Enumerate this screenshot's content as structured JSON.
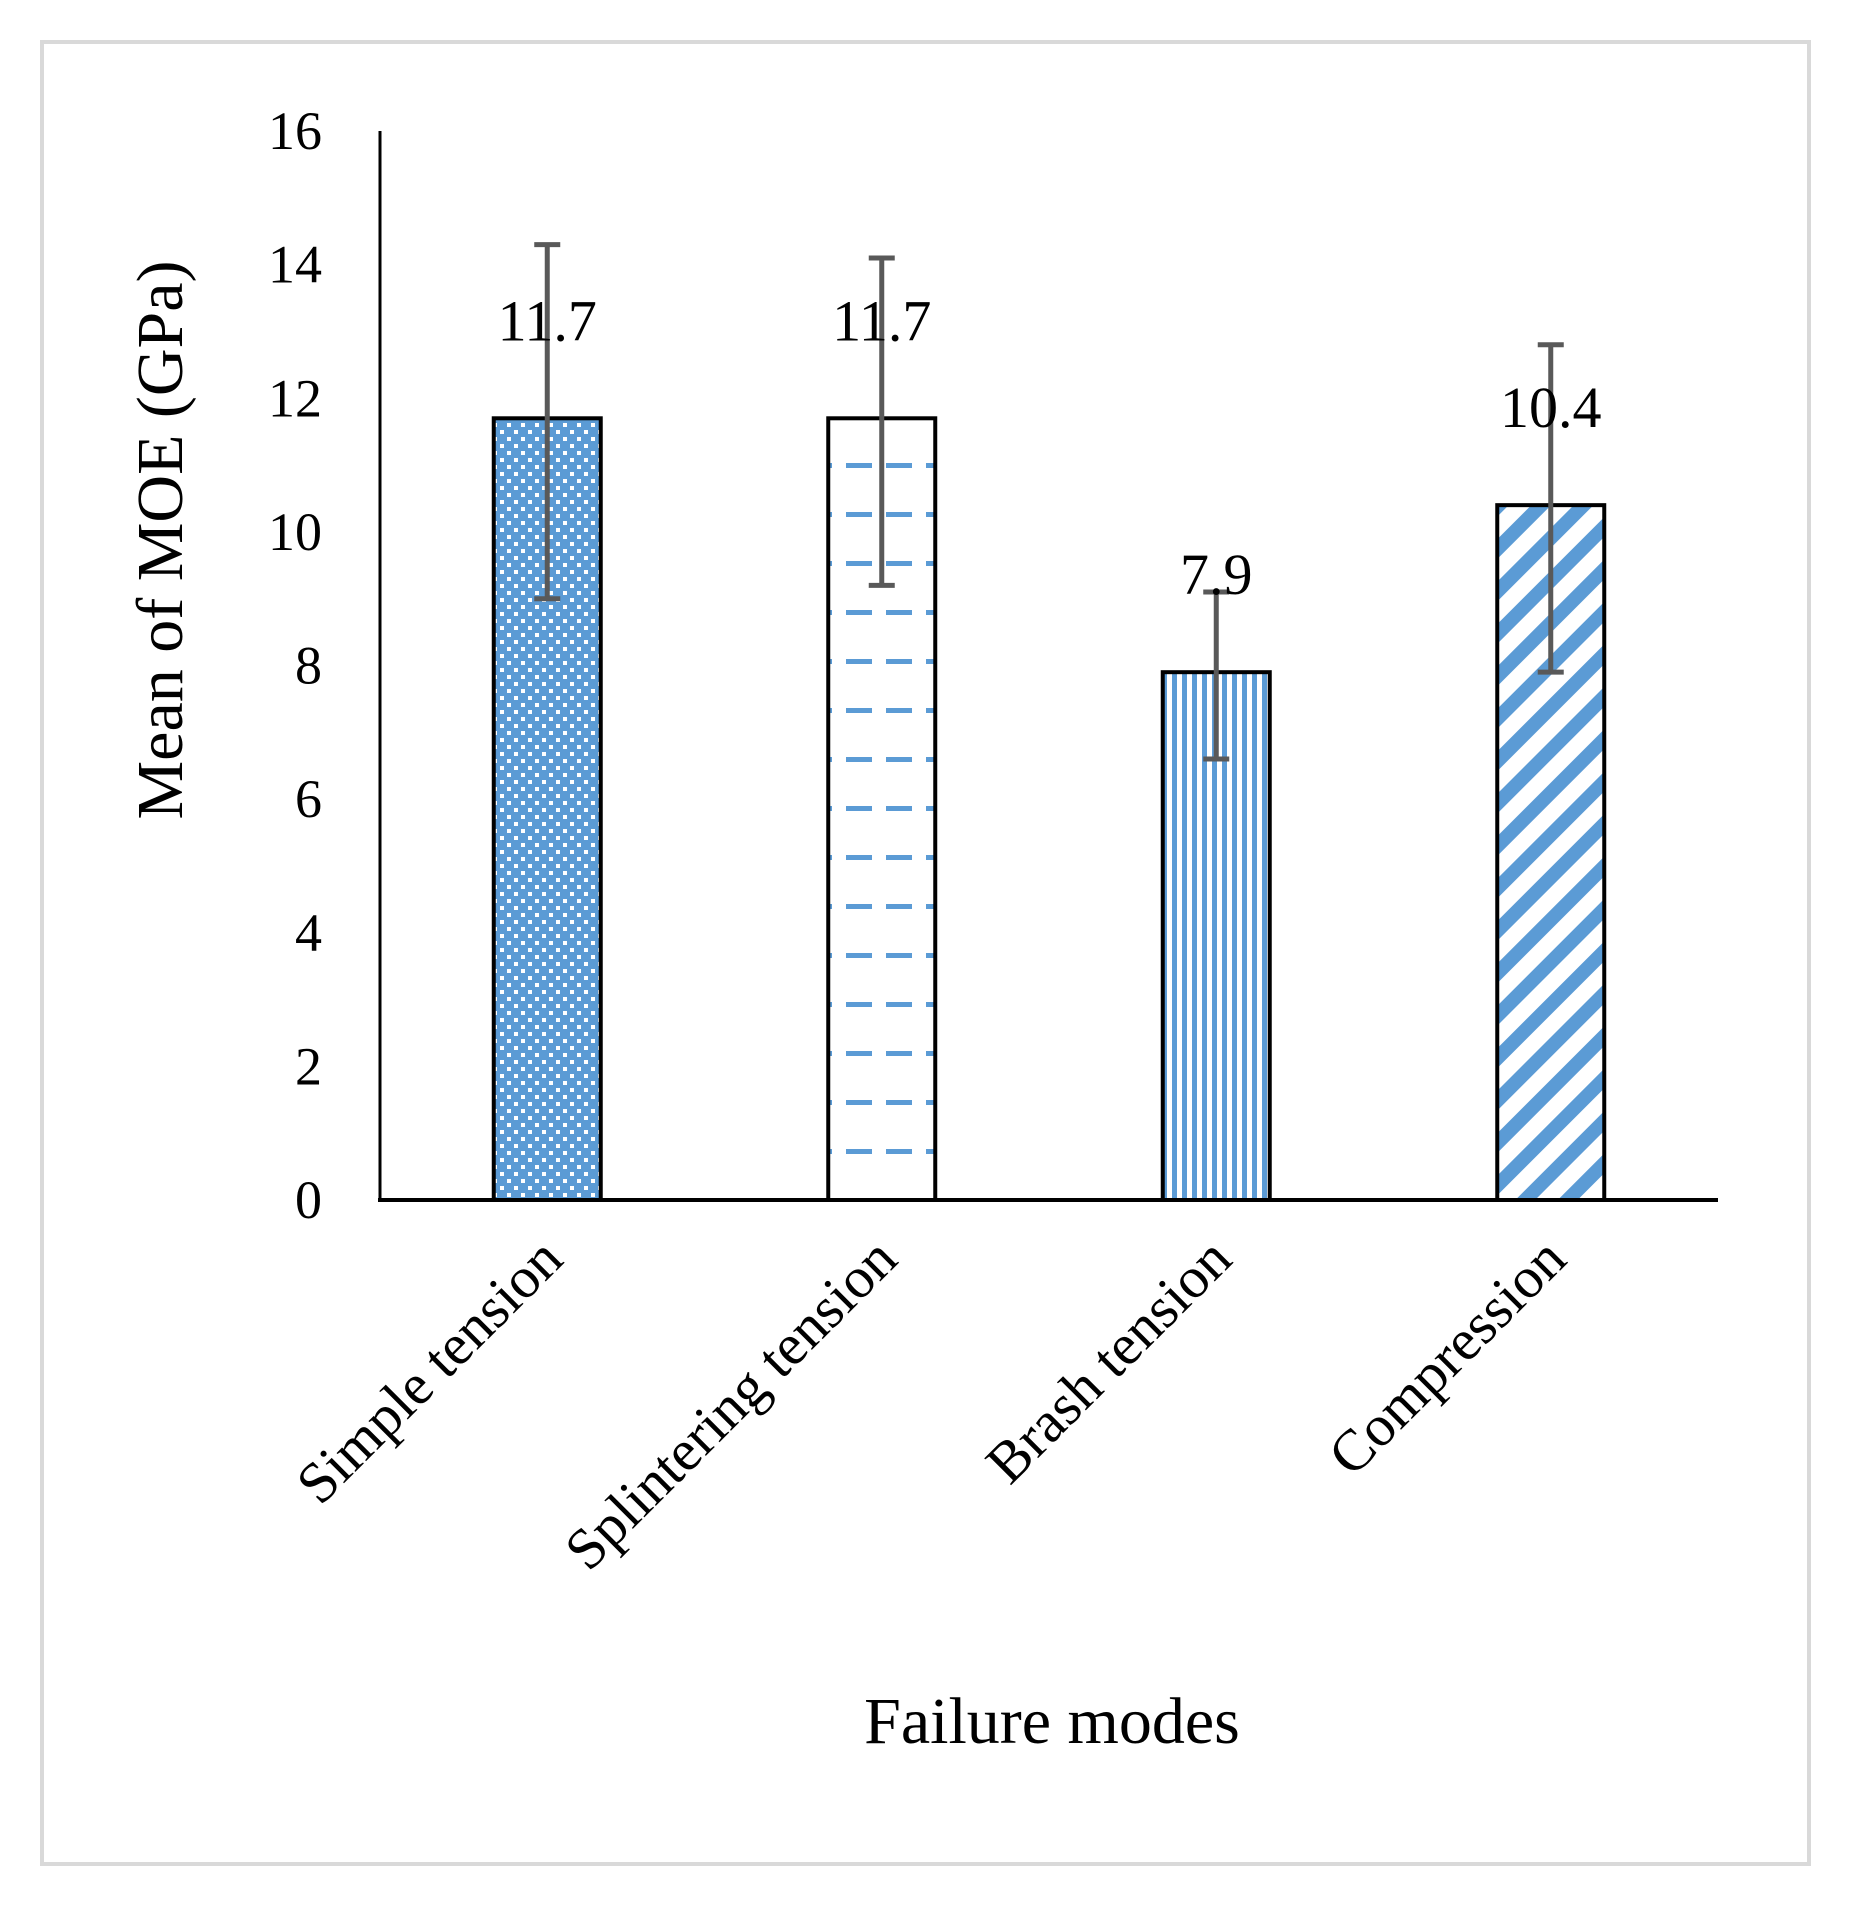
{
  "chart_data": {
    "type": "bar",
    "title": "",
    "xlabel": "Failure modes",
    "ylabel": "Mean of MOE (GPa)",
    "ylim": [
      0,
      16
    ],
    "yticks": [
      0,
      2,
      4,
      6,
      8,
      10,
      12,
      14,
      16
    ],
    "grid": false,
    "legend": "none",
    "categories": [
      "Simple tension",
      "Splintering tension",
      "Brash tension",
      "Compression"
    ],
    "values": [
      11.7,
      11.7,
      7.9,
      10.4
    ],
    "value_labels": [
      "11.7",
      "11.7",
      "7.9",
      "10.4"
    ],
    "error_bars": [
      {
        "low": 9.0,
        "high": 14.3
      },
      {
        "low": 9.2,
        "high": 14.1
      },
      {
        "low": 6.6,
        "high": 9.1
      },
      {
        "low": 7.9,
        "high": 12.8
      }
    ],
    "fill_patterns": [
      "dots",
      "horizontal-dashes",
      "vertical-stripes",
      "diagonal-stripes"
    ]
  },
  "colors": {
    "bar_blue": "#5b9bd5",
    "bar_outline": "#000000",
    "error_bar": "#595959",
    "axis": "#000000",
    "frame": "#d9d9d9"
  }
}
